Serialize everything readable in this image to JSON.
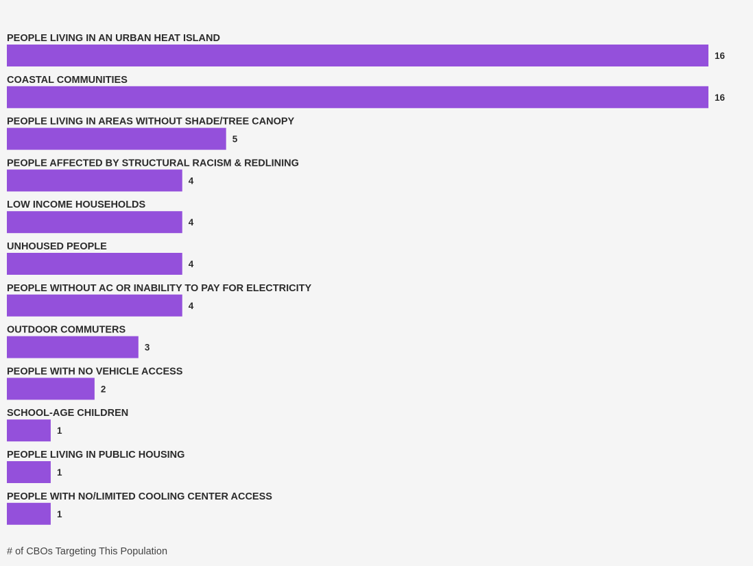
{
  "chart_data": {
    "type": "bar",
    "orientation": "horizontal",
    "title": "",
    "xlabel": "# of CBOs Targeting This Population",
    "ylabel": "",
    "categories": [
      "PEOPLE LIVING IN AN URBAN HEAT ISLAND",
      "COASTAL COMMUNITIES",
      "PEOPLE LIVING IN AREAS WITHOUT SHADE/TREE CANOPY",
      "PEOPLE AFFECTED BY STRUCTURAL RACISM & REDLINING",
      "LOW INCOME HOUSEHOLDS",
      "UNHOUSED PEOPLE",
      "PEOPLE WITHOUT AC OR INABILITY TO PAY FOR ELECTRICITY",
      "OUTDOOR COMMUTERS",
      "PEOPLE WITH NO VEHICLE ACCESS",
      "SCHOOL-AGE CHILDREN",
      "PEOPLE LIVING IN PUBLIC HOUSING",
      "PEOPLE WITH NO/LIMITED COOLING CENTER ACCESS"
    ],
    "values": [
      16,
      16,
      5,
      4,
      4,
      4,
      4,
      3,
      2,
      1,
      1,
      1
    ],
    "xlim": [
      0,
      16
    ],
    "grid": false,
    "legend": "none",
    "data_labels": true,
    "colors": {
      "bar": "#9450db",
      "background": "#f5f5f5",
      "text": "#2b2b2b"
    }
  }
}
